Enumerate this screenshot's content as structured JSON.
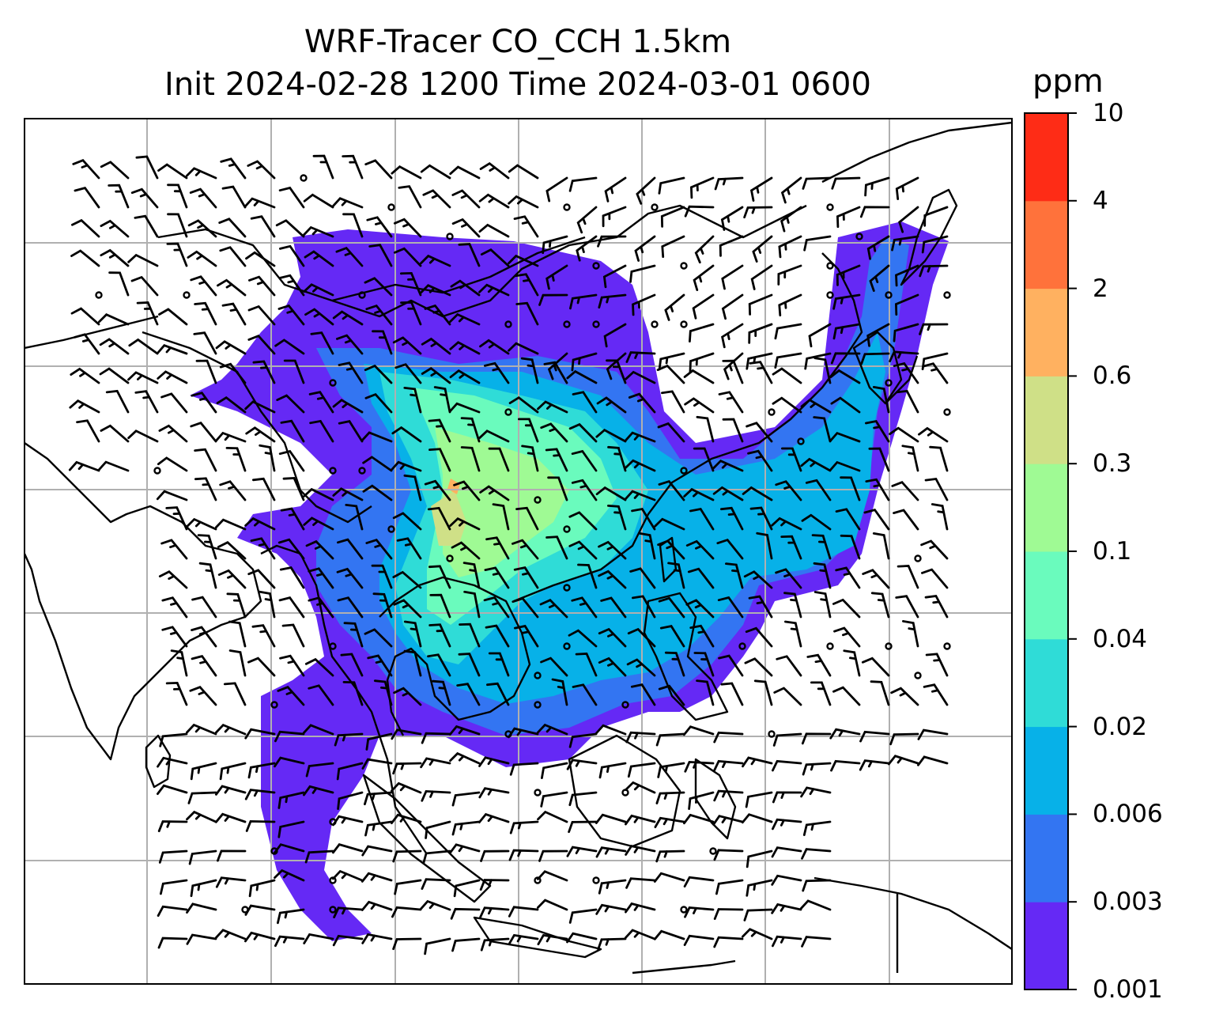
{
  "title_line1": "WRF-Tracer CO_CCH 1.5km",
  "title_line2": "Init 2024-02-28 1200 Time 2024-03-01 0600",
  "colorbar": {
    "units": "ppm",
    "ticks": [
      "0.001",
      "0.003",
      "0.006",
      "0.02",
      "0.04",
      "0.1",
      "0.3",
      "0.6",
      "2",
      "4",
      "10"
    ],
    "colors": [
      "#6529f5",
      "#3375f2",
      "#07b1e8",
      "#2fdcd7",
      "#6afbbd",
      "#9ffa94",
      "#cfe087",
      "#ffb160",
      "#ff723b",
      "#fe2c16"
    ]
  },
  "map": {
    "grid_lines": true,
    "field_colors": {
      "level1": "#6529f5",
      "level2": "#3375f2",
      "level3": "#07b1e8",
      "level4": "#2fdcd7",
      "level5": "#6afbbd",
      "level6": "#9ffa94",
      "level7": "#cfe087",
      "level8": "#ffb160"
    },
    "coastline_color": "#000000",
    "barb_color": "#000000",
    "grid_color": "#b0b0b0"
  }
}
